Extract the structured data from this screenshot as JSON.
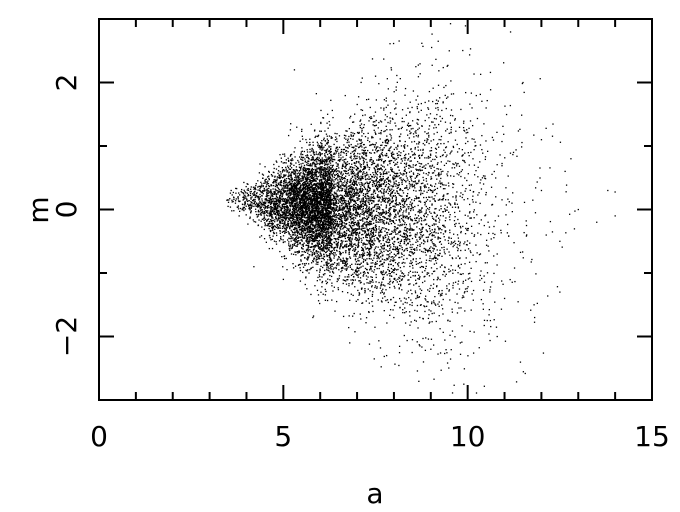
{
  "chart_data": {
    "type": "scatter",
    "title": "",
    "xlabel": "a",
    "ylabel": "m",
    "xlim": [
      0,
      15
    ],
    "ylim": [
      -3,
      3
    ],
    "x_ticks": [
      0,
      5,
      10,
      15
    ],
    "x_tick_labels": [
      "0",
      "5",
      "10",
      "15"
    ],
    "x_minor_ticks": [
      1,
      2,
      3,
      4,
      6,
      7,
      8,
      9,
      11,
      12,
      13,
      14
    ],
    "y_ticks": [
      -2,
      0,
      2
    ],
    "y_tick_labels": [
      "−2",
      "0",
      "2"
    ],
    "y_minor_ticks": [
      -3,
      -1,
      1,
      3
    ],
    "grid": false,
    "legend": "none",
    "point_color": "#000000",
    "series": [
      {
        "points": [
          [
            3.5,
            0.05
          ],
          [
            3.6,
            -0.02
          ],
          [
            3.7,
            0.1
          ],
          [
            3.8,
            -0.1
          ],
          [
            3.9,
            0.08
          ],
          [
            4.0,
            0.15
          ],
          [
            4.1,
            -0.12
          ],
          [
            4.2,
            0.05
          ],
          [
            4.3,
            0.2
          ],
          [
            4.4,
            -0.05
          ],
          [
            4.5,
            0.1
          ],
          [
            4.6,
            -0.15
          ],
          [
            4.7,
            0.25
          ],
          [
            4.8,
            0.0
          ],
          [
            4.9,
            -0.2
          ],
          [
            5.0,
            0.3
          ],
          [
            5.1,
            0.1
          ],
          [
            5.2,
            -0.25
          ],
          [
            5.3,
            0.2
          ],
          [
            5.4,
            0.05
          ],
          [
            5.5,
            -0.3
          ],
          [
            5.6,
            0.35
          ],
          [
            5.7,
            0.0
          ],
          [
            5.8,
            -0.2
          ],
          [
            5.9,
            0.25
          ],
          [
            6.0,
            0.1
          ],
          [
            6.1,
            -0.35
          ],
          [
            6.2,
            0.4
          ],
          [
            6.3,
            -0.05
          ],
          [
            6.4,
            0.15
          ],
          [
            6.5,
            -0.25
          ],
          [
            6.6,
            0.3
          ],
          [
            6.7,
            0.05
          ],
          [
            6.8,
            -0.4
          ],
          [
            6.9,
            0.2
          ],
          [
            7.0,
            -0.1
          ],
          [
            7.2,
            0.35
          ],
          [
            7.4,
            -0.3
          ],
          [
            7.6,
            0.15
          ],
          [
            7.8,
            -0.2
          ],
          [
            8.0,
            0.4
          ],
          [
            8.2,
            -0.5
          ],
          [
            8.5,
            0.1
          ],
          [
            8.8,
            -0.4
          ],
          [
            9.0,
            0.3
          ],
          [
            9.3,
            -0.6
          ],
          [
            9.6,
            0.2
          ],
          [
            10.0,
            -0.3
          ],
          [
            10.4,
            0.5
          ],
          [
            10.8,
            -0.7
          ],
          [
            11.2,
            0.1
          ],
          [
            11.6,
            -0.4
          ],
          [
            12.0,
            0.3
          ],
          [
            12.5,
            -0.5
          ],
          [
            13.0,
            0.0
          ],
          [
            13.5,
            -0.2
          ],
          [
            14.0,
            -0.1
          ],
          [
            5.3,
            2.2
          ],
          [
            9.2,
            2.65
          ],
          [
            9.5,
            2.5
          ],
          [
            7.5,
            2.1
          ],
          [
            6.2,
            1.5
          ],
          [
            8.3,
            1.8
          ],
          [
            10.5,
            1.6
          ],
          [
            11.5,
            2.0
          ],
          [
            4.6,
            0.6
          ],
          [
            6.8,
            -2.1
          ],
          [
            7.8,
            -2.3
          ],
          [
            8.8,
            -2.4
          ],
          [
            9.8,
            -2.1
          ],
          [
            5.8,
            -1.7
          ],
          [
            10.8,
            -2.0
          ],
          [
            11.8,
            -1.5
          ],
          [
            12.5,
            -1.3
          ],
          [
            4.2,
            -0.9
          ],
          [
            5.0,
            -1.1
          ],
          [
            6.4,
            -1.6
          ],
          [
            12.8,
            0.8
          ],
          [
            13.8,
            0.3
          ],
          [
            7.3,
            1.2
          ],
          [
            8.7,
            -1.7
          ],
          [
            10.2,
            1.0
          ],
          [
            11.0,
            -1.4
          ],
          [
            12.0,
            1.1
          ],
          [
            9.0,
            -2.2
          ]
        ]
      }
    ],
    "cloud": {
      "description_free_params": true,
      "n_points": 9000,
      "a_mode": 6.3,
      "a_min": 3.45,
      "a_max": 14.2,
      "a_spread_low": 0.95,
      "a_spread_high": 2.0,
      "m_center": 0.05,
      "m_skew": -0.04,
      "m_sd_at_min": 0.05,
      "m_sd_growth": 0.17,
      "m_sd_max": 1.15,
      "seed": 12345
    }
  }
}
